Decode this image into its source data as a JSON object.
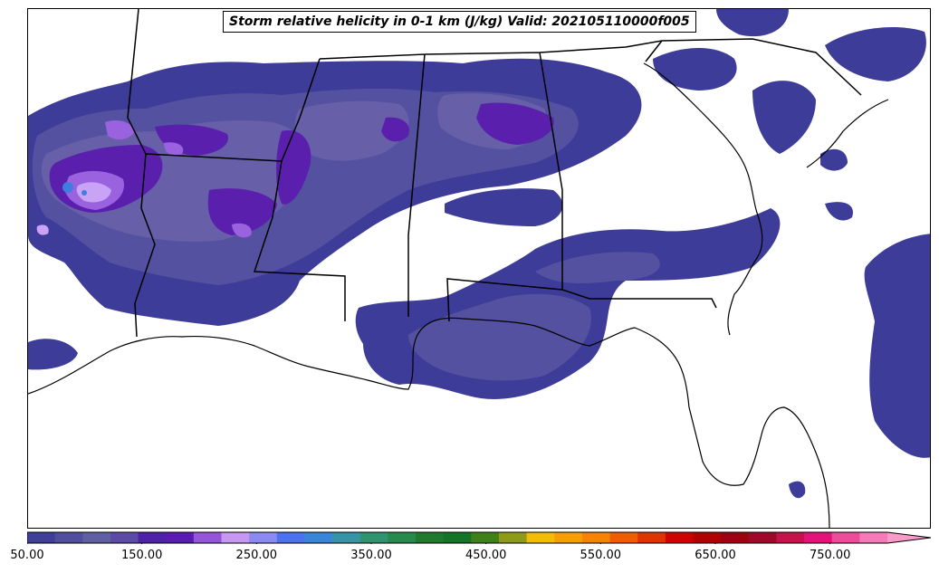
{
  "title": "Storm relative helicity in 0-1 km (J/kg) Valid: 202105110000f005",
  "colorbar": {
    "min": 50,
    "max": 800,
    "extend": "max",
    "ticks": [
      "50.00",
      "150.00",
      "250.00",
      "350.00",
      "450.00",
      "550.00",
      "650.00",
      "750.00"
    ],
    "tick_values": [
      50,
      150,
      250,
      350,
      450,
      550,
      650,
      750
    ],
    "colors": [
      "#3f3f9a",
      "#4f4f9e",
      "#5f5fa3",
      "#5b4aa6",
      "#4e22a6",
      "#5a1cb0",
      "#9455d8",
      "#c797f2",
      "#8a8af0",
      "#4d72ee",
      "#3a86d6",
      "#3794a6",
      "#2f9370",
      "#268a4d",
      "#1f7a2e",
      "#137326",
      "#3f8019",
      "#8f9a1b",
      "#f2bd00",
      "#f5a000",
      "#f58400",
      "#f25b00",
      "#e23200",
      "#d30000",
      "#b30000",
      "#a00010",
      "#a0082a",
      "#c8104c",
      "#e8107a",
      "#f04a9a",
      "#f57ab8"
    ],
    "extend_color": "#f99ac8"
  },
  "map": {
    "fill_colors": {
      "level1": "#3d3c98",
      "level2": "#5452a0",
      "level3": "#675fa8",
      "level4": "#5a20ad",
      "level5": "#9b62e0",
      "level6": "#c9a3f5",
      "level7": "#3f7ee0"
    },
    "line_color": "#000000"
  }
}
